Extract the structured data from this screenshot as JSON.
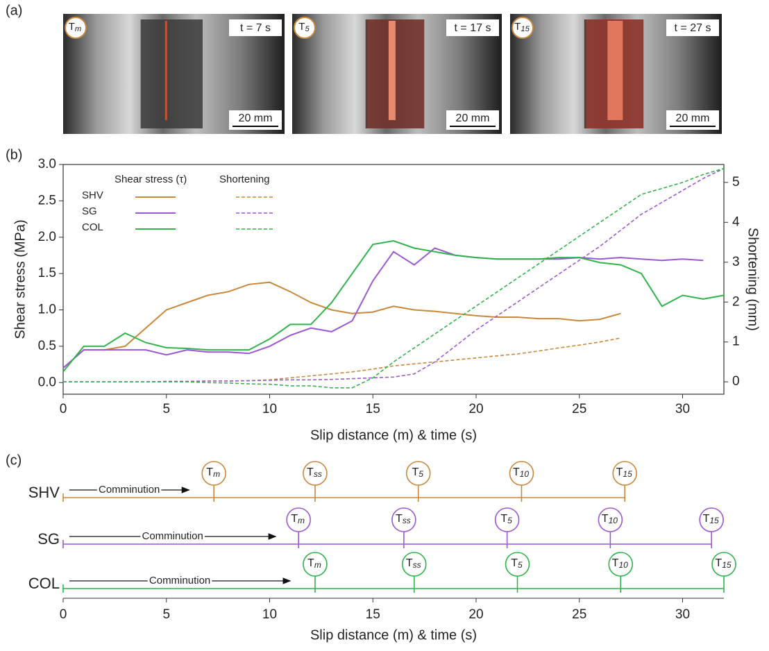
{
  "photos": {
    "label": "(a)",
    "frames": [
      {
        "marker": "T",
        "marker_sub": "m",
        "time": "t = 7 s",
        "scale": "20 mm"
      },
      {
        "marker": "T",
        "marker_sub": "5",
        "time": "t = 17 s",
        "scale": "20 mm"
      },
      {
        "marker": "T",
        "marker_sub": "15",
        "time": "t = 27 s",
        "scale": "20 mm"
      }
    ]
  },
  "chart_data": [
    {
      "type": "line",
      "panel_label": "(b)",
      "xlabel": "Slip distance (m) & time (s)",
      "ylabel": "Shear stress (MPa)",
      "y2label": "Shortening (mm)",
      "legend": {
        "headers": [
          "Shear stress (τ)",
          "Shortening"
        ]
      },
      "x": [
        0,
        1,
        2,
        3,
        4,
        5,
        6,
        7,
        8,
        9,
        10,
        11,
        12,
        13,
        14,
        15,
        16,
        17,
        18,
        19,
        20,
        21,
        22,
        23,
        24,
        25,
        26,
        27,
        28,
        29,
        30,
        31,
        32
      ],
      "xlim": [
        0,
        32
      ],
      "xticks": [
        0,
        5,
        10,
        15,
        20,
        25,
        30
      ],
      "ylim": [
        -0.16,
        3.0
      ],
      "yticks": [
        {
          "value": 0,
          "label": "0.0"
        },
        0.5,
        {
          "value": 1,
          "label": "1.0"
        },
        1.5,
        {
          "value": 2,
          "label": "2.0"
        },
        2.5,
        {
          "value": 3,
          "label": "3.0"
        }
      ],
      "y2lim": [
        -0.31,
        5.45
      ],
      "y2ticks": [
        0,
        1,
        2,
        3,
        4,
        5
      ],
      "series": [
        {
          "name": "SHV",
          "color": "#c9873c",
          "style": "solid",
          "values": [
            0.2,
            0.45,
            0.45,
            0.5,
            0.75,
            1.0,
            1.1,
            1.2,
            1.25,
            1.35,
            1.38,
            1.25,
            1.1,
            1.0,
            0.95,
            0.97,
            1.05,
            1.0,
            0.98,
            0.95,
            0.92,
            0.9,
            0.9,
            0.88,
            0.88,
            0.85,
            0.87,
            0.95,
            null,
            null,
            null,
            null,
            null
          ]
        },
        {
          "name": "SG",
          "color": "#9b57d3",
          "style": "solid",
          "values": [
            0.2,
            0.45,
            0.45,
            0.45,
            0.45,
            0.38,
            0.45,
            0.42,
            0.42,
            0.4,
            0.5,
            0.65,
            0.75,
            0.7,
            0.85,
            1.4,
            1.8,
            1.62,
            1.85,
            1.75,
            1.72,
            1.7,
            1.7,
            1.7,
            1.7,
            1.72,
            1.7,
            1.72,
            1.7,
            1.68,
            1.7,
            1.68,
            null
          ]
        },
        {
          "name": "COL",
          "color": "#2fb34a",
          "style": "solid",
          "values": [
            0.15,
            0.5,
            0.5,
            0.68,
            0.55,
            0.48,
            0.47,
            0.45,
            0.45,
            0.45,
            0.6,
            0.8,
            0.8,
            1.1,
            1.5,
            1.9,
            1.95,
            1.85,
            1.8,
            1.75,
            1.72,
            1.7,
            1.7,
            1.7,
            1.72,
            1.72,
            1.65,
            1.62,
            1.5,
            1.05,
            1.2,
            1.15,
            1.2
          ]
        },
        {
          "color": "#c9873c",
          "style": "dashed",
          "axis": "y2",
          "values": [
            0,
            0,
            0,
            0,
            0,
            0.01,
            0.01,
            0.02,
            0.02,
            0.03,
            0.05,
            0.1,
            0.15,
            0.2,
            0.25,
            0.32,
            0.4,
            0.45,
            0.5,
            0.55,
            0.6,
            0.65,
            0.7,
            0.77,
            0.85,
            0.92,
            1.0,
            1.1,
            null,
            null,
            null,
            null,
            null
          ]
        },
        {
          "color": "#9b57d3",
          "style": "dashed",
          "axis": "y2",
          "values": [
            0,
            0,
            0,
            0,
            0,
            0.01,
            0.01,
            0.02,
            0.02,
            0.03,
            0.04,
            0.05,
            0.05,
            0.06,
            0.08,
            0.1,
            0.12,
            0.2,
            0.5,
            0.9,
            1.3,
            1.65,
            2.0,
            2.35,
            2.7,
            3.05,
            3.4,
            3.8,
            4.2,
            4.5,
            4.8,
            5.1,
            5.35
          ]
        },
        {
          "color": "#2fb34a",
          "style": "dashed",
          "axis": "y2",
          "values": [
            0,
            0,
            0,
            0,
            0,
            0,
            0,
            -0.02,
            -0.03,
            -0.05,
            -0.06,
            -0.1,
            -0.1,
            -0.15,
            -0.15,
            0.1,
            0.5,
            0.85,
            1.2,
            1.55,
            1.9,
            2.25,
            2.6,
            2.95,
            3.3,
            3.65,
            4.0,
            4.35,
            4.7,
            4.85,
            5.0,
            5.2,
            5.35
          ]
        }
      ]
    },
    {
      "type": "timeline",
      "panel_label": "(c)",
      "xlabel": "Slip distance (m) & time (s)",
      "xlim": [
        0,
        32
      ],
      "xticks": [
        0,
        5,
        10,
        15,
        20,
        25,
        30
      ],
      "arrow_label": "Comminution",
      "arrow_start": 0.3,
      "event_labels": [
        {
          "main": "T",
          "sub": "m"
        },
        {
          "main": "T",
          "sub": "ss"
        },
        {
          "main": "T",
          "sub": "5"
        },
        {
          "main": "T",
          "sub": "10"
        },
        {
          "main": "T",
          "sub": "15"
        }
      ],
      "series": [
        {
          "name": "SHV",
          "color": "#c9873c",
          "arrow_end": 6.1,
          "values": [
            7.3,
            12.2,
            17.2,
            22.2,
            27.2
          ]
        },
        {
          "name": "SG",
          "color": "#9b57d3",
          "arrow_end": 10.3,
          "values": [
            11.4,
            16.5,
            21.5,
            26.5,
            31.4
          ]
        },
        {
          "name": "COL",
          "color": "#2fb34a",
          "arrow_end": 11.0,
          "values": [
            12.2,
            17.0,
            22.0,
            27.0,
            32.0
          ]
        }
      ]
    }
  ]
}
